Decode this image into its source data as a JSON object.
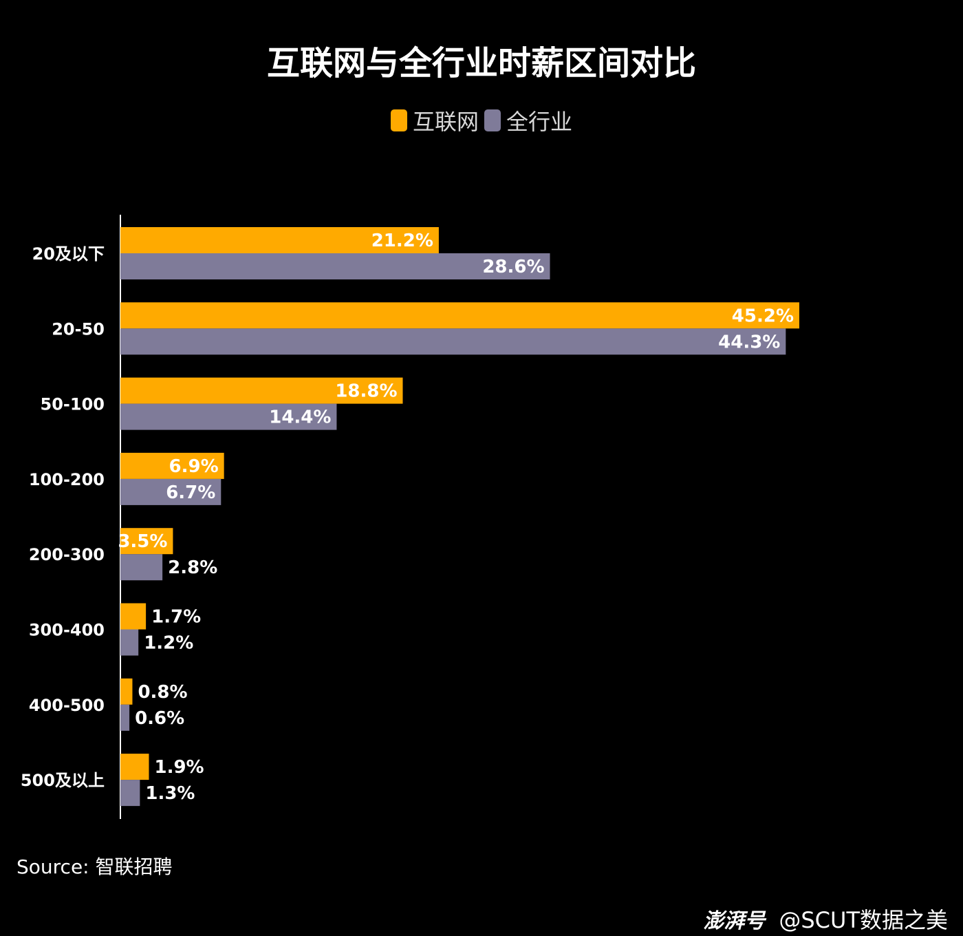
{
  "chart_data": {
    "type": "bar",
    "orientation": "horizontal",
    "title": "互联网与全行业时薪区间对比",
    "categories": [
      "20及以下",
      "20-50",
      "50-100",
      "100-200",
      "200-300",
      "300-400",
      "400-500",
      "500及以上"
    ],
    "series": [
      {
        "name": "互联网",
        "color": "#FFAA00",
        "values": [
          21.2,
          45.2,
          18.8,
          6.9,
          3.5,
          1.7,
          0.8,
          1.9
        ],
        "labels": [
          "21.2%",
          "45.2%",
          "18.8%",
          "6.9%",
          "3.5%",
          "1.7%",
          "0.8%",
          "1.9%"
        ]
      },
      {
        "name": "全行业",
        "color": "#7F7B99",
        "values": [
          28.6,
          44.3,
          14.4,
          6.7,
          2.8,
          1.2,
          0.6,
          1.3
        ],
        "labels": [
          "28.6%",
          "44.3%",
          "14.4%",
          "6.7%",
          "2.8%",
          "1.2%",
          "0.6%",
          "1.3%"
        ]
      }
    ],
    "xlim": [
      0,
      45.2
    ],
    "grid": false,
    "legend_position": "top-center"
  },
  "source": "Source: 智联招聘",
  "watermark": {
    "brand": "澎湃号",
    "handle": "@SCUT数据之美"
  }
}
